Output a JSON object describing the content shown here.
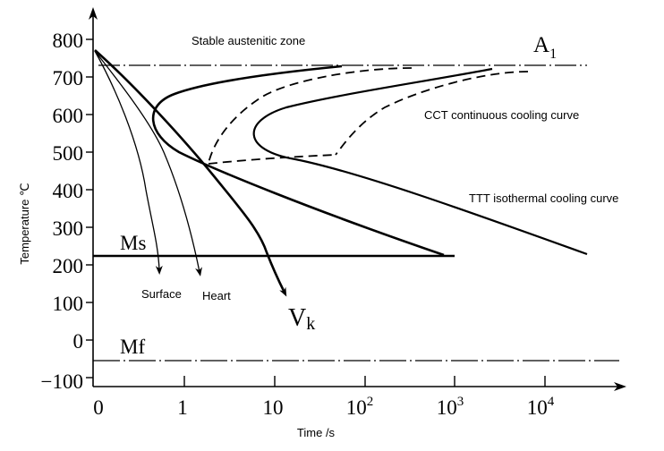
{
  "axes": {
    "y_label": "Temperature ℃",
    "x_label": "Time /s",
    "y_ticks": [
      "800",
      "700",
      "600",
      "500",
      "400",
      "300",
      "200",
      "100",
      "0",
      "−100"
    ],
    "x_ticks": [
      {
        "base": "0",
        "exp": ""
      },
      {
        "base": "1",
        "exp": ""
      },
      {
        "base": "10",
        "exp": ""
      },
      {
        "base": "10",
        "exp": "2"
      },
      {
        "base": "10",
        "exp": "3"
      },
      {
        "base": "10",
        "exp": "4"
      }
    ]
  },
  "labels": {
    "zone": "Stable austenitic zone",
    "a1_main": "A",
    "a1_sub": "1",
    "cct": "CCT continuous cooling curve",
    "ttt": "TTT isothermal cooling curve",
    "ms": "Ms",
    "mf": "Mf",
    "surface": "Surface",
    "heart": "Heart",
    "vk_main": "V",
    "vk_sub": "k"
  }
}
